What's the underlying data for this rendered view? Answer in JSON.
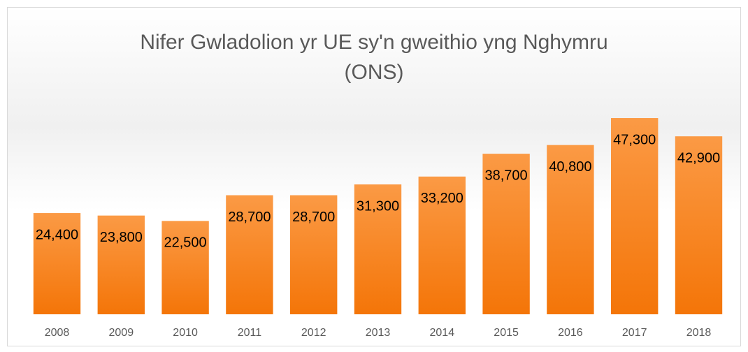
{
  "chart_data": {
    "type": "bar",
    "title": [
      "Nifer Gwladolion yr UE sy'n gweithio yng Nghymru",
      "(ONS)"
    ],
    "categories": [
      "2008",
      "2009",
      "2010",
      "2011",
      "2012",
      "2013",
      "2014",
      "2015",
      "2016",
      "2017",
      "2018"
    ],
    "values": [
      24400,
      23800,
      22500,
      28700,
      28700,
      31300,
      33200,
      38700,
      40800,
      47300,
      42900
    ],
    "value_labels": [
      "24,400",
      "23,800",
      "22,500",
      "28,700",
      "28,700",
      "31,300",
      "33,200",
      "38,700",
      "40,800",
      "47,300",
      "42,900"
    ],
    "color": "#f7841f",
    "ylim": [
      0,
      50000
    ]
  }
}
